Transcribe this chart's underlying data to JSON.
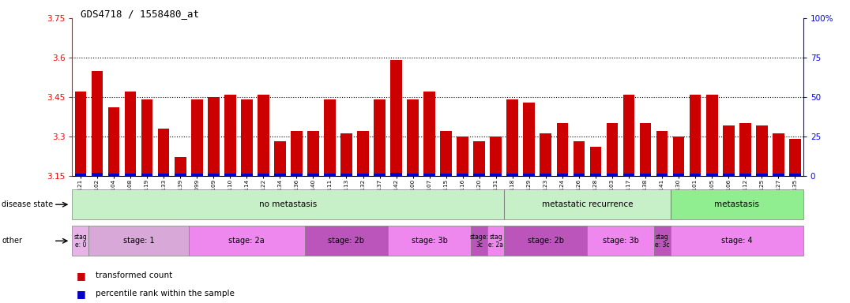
{
  "title": "GDS4718 / 1558480_at",
  "samples": [
    "GSM549121",
    "GSM549102",
    "GSM549104",
    "GSM549108",
    "GSM549119",
    "GSM549133",
    "GSM549139",
    "GSM549099",
    "GSM549109",
    "GSM549110",
    "GSM549114",
    "GSM549122",
    "GSM549134",
    "GSM549136",
    "GSM549140",
    "GSM549111",
    "GSM549113",
    "GSM549132",
    "GSM549137",
    "GSM549142",
    "GSM549100",
    "GSM549107",
    "GSM549115",
    "GSM549116",
    "GSM549120",
    "GSM549131",
    "GSM549118",
    "GSM549129",
    "GSM549123",
    "GSM549124",
    "GSM549126",
    "GSM549128",
    "GSM549103",
    "GSM549117",
    "GSM549138",
    "GSM549141",
    "GSM549130",
    "GSM549101",
    "GSM549105",
    "GSM549106",
    "GSM549112",
    "GSM549125",
    "GSM549127",
    "GSM549135"
  ],
  "red_values": [
    3.47,
    3.55,
    3.41,
    3.47,
    3.44,
    3.33,
    3.22,
    3.44,
    3.45,
    3.46,
    3.44,
    3.46,
    3.28,
    3.32,
    3.32,
    3.44,
    3.31,
    3.32,
    3.44,
    3.59,
    3.44,
    3.47,
    3.32,
    3.3,
    3.28,
    3.3,
    3.44,
    3.43,
    3.31,
    3.35,
    3.28,
    3.26,
    3.35,
    3.46,
    3.35,
    3.32,
    3.3,
    3.46,
    3.46,
    3.34,
    3.35,
    3.34,
    3.31,
    3.29
  ],
  "blue_heights": [
    0.008,
    0.01,
    0.007,
    0.008,
    0.007,
    0.007,
    0.007,
    0.008,
    0.008,
    0.008,
    0.008,
    0.008,
    0.007,
    0.007,
    0.007,
    0.008,
    0.007,
    0.007,
    0.008,
    0.01,
    0.008,
    0.008,
    0.007,
    0.007,
    0.007,
    0.007,
    0.008,
    0.008,
    0.007,
    0.007,
    0.007,
    0.007,
    0.007,
    0.008,
    0.007,
    0.007,
    0.007,
    0.008,
    0.008,
    0.007,
    0.007,
    0.007,
    0.007,
    0.007
  ],
  "ymin": 3.15,
  "ymax": 3.75,
  "yticks": [
    3.15,
    3.3,
    3.45,
    3.6,
    3.75
  ],
  "ytick_labels": [
    "3.15",
    "3.3",
    "3.45",
    "3.6",
    "3.75"
  ],
  "right_yticks": [
    0,
    25,
    50,
    75,
    100
  ],
  "dotted_lines": [
    3.3,
    3.45,
    3.6
  ],
  "bar_color": "#cc0000",
  "blue_color": "#0000cc",
  "background_color": "#f0f0f0",
  "plot_bg": "#ffffff",
  "disease_state_groups": [
    {
      "label": "no metastasis",
      "start": 0,
      "end": 26,
      "color": "#c8f0c8"
    },
    {
      "label": "metastatic recurrence",
      "start": 26,
      "end": 36,
      "color": "#c8f0c8"
    },
    {
      "label": "metastasis",
      "start": 36,
      "end": 44,
      "color": "#90ee90"
    }
  ],
  "stage_groups": [
    {
      "label": "stag\ne: 0",
      "start": 0,
      "end": 1
    },
    {
      "label": "stage: 1",
      "start": 1,
      "end": 7
    },
    {
      "label": "stage: 2a",
      "start": 7,
      "end": 14
    },
    {
      "label": "stage: 2b",
      "start": 14,
      "end": 19
    },
    {
      "label": "stage: 3b",
      "start": 19,
      "end": 24
    },
    {
      "label": "stage:\n3c",
      "start": 24,
      "end": 25
    },
    {
      "label": "stag\ne: 2a",
      "start": 25,
      "end": 26
    },
    {
      "label": "stage: 2b",
      "start": 26,
      "end": 31
    },
    {
      "label": "stage: 3b",
      "start": 31,
      "end": 35
    },
    {
      "label": "stag\ne: 3c",
      "start": 35,
      "end": 36
    },
    {
      "label": "stage: 4",
      "start": 36,
      "end": 44
    }
  ],
  "stage_colors": {
    "stag\ne: 0": "#e8b4e8",
    "stage: 1": "#d8a8d8",
    "stage: 2a": "#ee88ee",
    "stage: 2b": "#bb55bb",
    "stage: 3b": "#ee88ee",
    "stage:\n3c": "#bb55bb",
    "stag\ne: 2a": "#ee88ee",
    "stage: 2b_2": "#bb55bb",
    "stage: 3b_2": "#ee88ee",
    "stag\ne: 3c": "#bb55bb",
    "stage: 4": "#ee88ee"
  }
}
